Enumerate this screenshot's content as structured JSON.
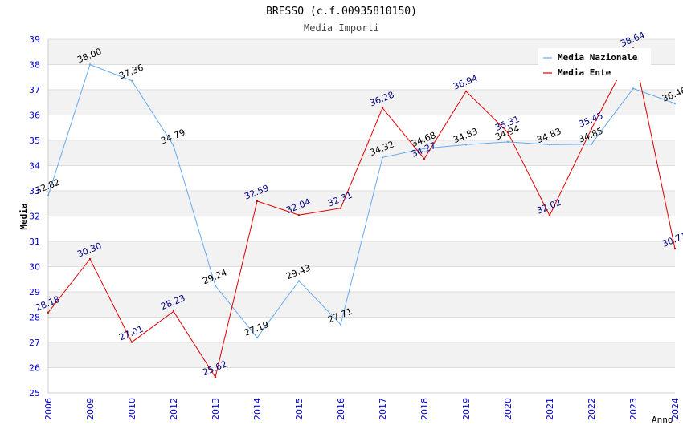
{
  "chart_data": {
    "type": "line",
    "title": "BRESSO (c.f.00935810150)",
    "subtitle": "Media Importi",
    "xlabel": "Anno",
    "ylabel": "Media",
    "ylim": [
      25,
      39
    ],
    "yticks": [
      25,
      26,
      27,
      28,
      29,
      30,
      31,
      32,
      33,
      34,
      35,
      36,
      37,
      38,
      39
    ],
    "categories": [
      "2006",
      "2009",
      "2010",
      "2012",
      "2013",
      "2014",
      "2015",
      "2016",
      "2017",
      "2018",
      "2019",
      "2020",
      "2021",
      "2022",
      "2023",
      "2024"
    ],
    "legend_position": "top-right",
    "grid": true,
    "series": [
      {
        "name": "Media Nazionale",
        "color": "#66aaee",
        "label_color": "#000000",
        "values": [
          32.82,
          38.0,
          37.36,
          34.79,
          29.24,
          27.19,
          29.43,
          27.71,
          34.32,
          34.68,
          34.83,
          34.94,
          34.83,
          34.85,
          37.05,
          36.46
        ],
        "labels": [
          "32.82",
          "38.00",
          "37.36",
          "34.79",
          "29.24",
          "27.19",
          "29.43",
          "27.71",
          "34.32",
          "34.68",
          "34.83",
          "34.94",
          "34.83",
          "34.85",
          "",
          "36.46"
        ]
      },
      {
        "name": "Media Ente",
        "color": "#dd0000",
        "label_color": "#000080",
        "values": [
          28.18,
          30.3,
          27.01,
          28.23,
          25.62,
          32.59,
          32.04,
          32.31,
          36.28,
          34.27,
          36.94,
          35.31,
          32.02,
          35.45,
          38.64,
          30.71
        ],
        "labels": [
          "28.18",
          "30.30",
          "27.01",
          "28.23",
          "25.62",
          "32.59",
          "32.04",
          "32.31",
          "36.28",
          "34.27",
          "36.94",
          "35.31",
          "32.02",
          "35.45",
          "38.64",
          "30.71"
        ]
      }
    ]
  },
  "colors": {
    "band_alt": "#f2f2f2",
    "grid": "#dddddd",
    "tick_label": "#0000cc",
    "axis_label": "#000000",
    "title": "#000000",
    "subtitle": "#444444"
  }
}
